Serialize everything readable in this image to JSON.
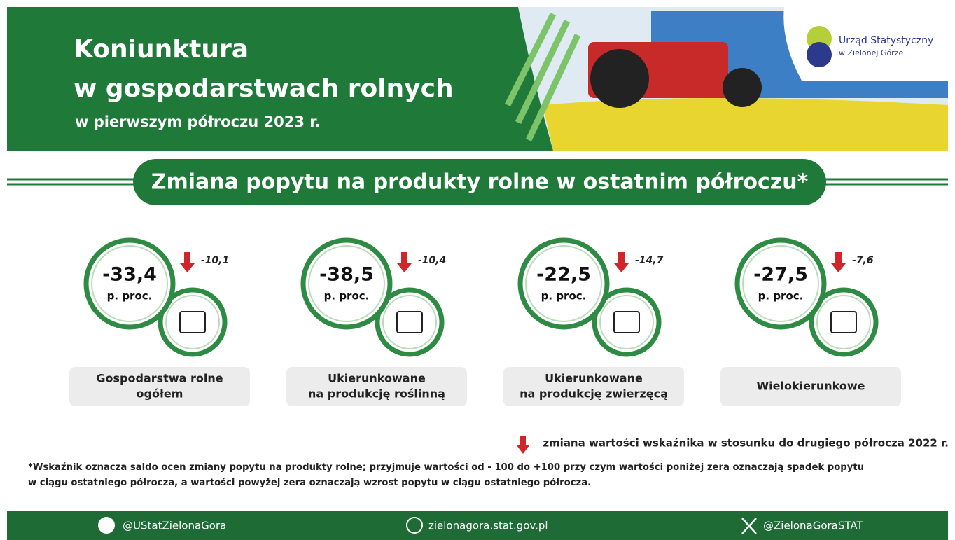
{
  "header": {
    "title_line1": "Koniunktura",
    "title_line2": "w gospodarstwach rolnych",
    "subtitle": "w pierwszym półroczu 2023 r.",
    "logo_line1": "Urząd Statystyczny",
    "logo_line2": "w Zielonej Górze"
  },
  "section_title": "Zmiana popytu na produkty rolne w ostatnim półroczu*",
  "items": [
    {
      "value": "-33,4",
      "unit": "p. proc.",
      "change": "-10,1",
      "label_lines": [
        "Gospodarstwa rolne",
        "ogółem"
      ]
    },
    {
      "value": "-38,5",
      "unit": "p. proc.",
      "change": "-10,4",
      "label_lines": [
        "Ukierunkowane",
        "na produkcję roślinną"
      ]
    },
    {
      "value": "-22,5",
      "unit": "p. proc.",
      "change": "-14,7",
      "label_lines": [
        "Ukierunkowane",
        "na produkcję zwierzęcą"
      ]
    },
    {
      "value": "-27,5",
      "unit": "p. proc.",
      "change": "-7,6",
      "label_lines": [
        "Wielokierunkowe"
      ]
    }
  ],
  "legend": "zmiana wartości wskaźnika w stosunku do drugiego półrocza 2022 r.",
  "footnote_lines": [
    "*Wskaźnik oznacza saldo ocen zmiany popytu na produkty rolne; przyjmuje wartości od - 100 do +100 przy czym wartości poniżej zera oznaczają spadek popytu",
    "w ciągu ostatniego półrocza, a wartości powyżej zera oznaczają wzrost popytu w ciągu ostatniego półrocza."
  ],
  "footer": {
    "facebook": "@UStatZielonaGora",
    "website": "zielonagora.stat.gov.pl",
    "x": "@ZielonaGoraSTAT"
  }
}
